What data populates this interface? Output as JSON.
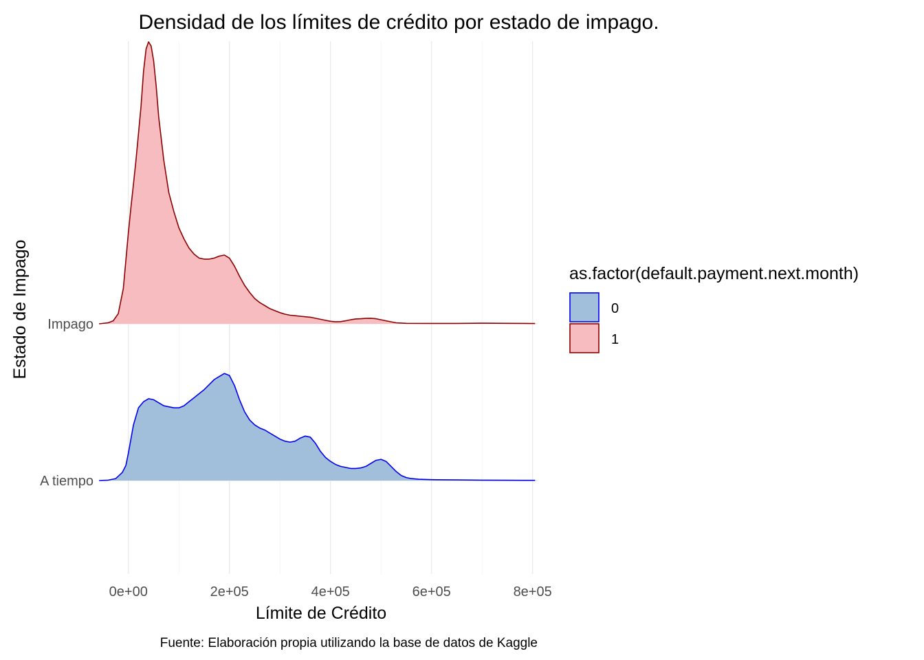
{
  "chart_data": {
    "type": "area",
    "title": "Densidad de los límites de crédito por estado de impago.",
    "xlabel": "Límite de Crédito",
    "ylabel": "Estado de Impago",
    "caption": "Fuente: Elaboración propia utilizando la base de datos de Kaggle",
    "xlim": [
      -50000,
      810000
    ],
    "x_ticks": [
      {
        "value": 0,
        "label": "0e+00"
      },
      {
        "value": 200000,
        "label": "2e+05"
      },
      {
        "value": 400000,
        "label": "4e+05"
      },
      {
        "value": 600000,
        "label": "6e+05"
      },
      {
        "value": 800000,
        "label": "8e+05"
      }
    ],
    "categories": [
      "A tiempo",
      "Impago"
    ],
    "grid": true,
    "legend": {
      "title": "as.factor(default.payment.next.month)",
      "position": "right",
      "entries": [
        {
          "label": "0",
          "fill": "#a1bfda",
          "stroke": "#0000ee"
        },
        {
          "label": "1",
          "fill": "#f7bcbf",
          "stroke": "#8b0000"
        }
      ]
    },
    "series": [
      {
        "level": "A tiempo",
        "legend_key": "0",
        "fill": "#a1bfda",
        "stroke": "#0000ee",
        "points": [
          [
            -58000,
            0.0
          ],
          [
            -40000,
            0.004
          ],
          [
            -25000,
            0.02
          ],
          [
            -12000,
            0.08
          ],
          [
            -5000,
            0.15
          ],
          [
            0,
            0.27
          ],
          [
            10000,
            0.55
          ],
          [
            20000,
            0.72
          ],
          [
            30000,
            0.78
          ],
          [
            40000,
            0.81
          ],
          [
            50000,
            0.8
          ],
          [
            60000,
            0.77
          ],
          [
            70000,
            0.74
          ],
          [
            80000,
            0.73
          ],
          [
            90000,
            0.72
          ],
          [
            100000,
            0.72
          ],
          [
            110000,
            0.74
          ],
          [
            120000,
            0.78
          ],
          [
            130000,
            0.82
          ],
          [
            140000,
            0.86
          ],
          [
            150000,
            0.9
          ],
          [
            160000,
            0.95
          ],
          [
            170000,
            1.0
          ],
          [
            180000,
            1.03
          ],
          [
            190000,
            1.06
          ],
          [
            200000,
            1.04
          ],
          [
            210000,
            0.94
          ],
          [
            220000,
            0.8
          ],
          [
            230000,
            0.68
          ],
          [
            240000,
            0.6
          ],
          [
            250000,
            0.55
          ],
          [
            260000,
            0.52
          ],
          [
            270000,
            0.5
          ],
          [
            280000,
            0.47
          ],
          [
            290000,
            0.44
          ],
          [
            300000,
            0.41
          ],
          [
            310000,
            0.39
          ],
          [
            320000,
            0.38
          ],
          [
            330000,
            0.39
          ],
          [
            340000,
            0.42
          ],
          [
            350000,
            0.44
          ],
          [
            360000,
            0.43
          ],
          [
            370000,
            0.37
          ],
          [
            380000,
            0.29
          ],
          [
            390000,
            0.23
          ],
          [
            400000,
            0.19
          ],
          [
            410000,
            0.16
          ],
          [
            420000,
            0.14
          ],
          [
            430000,
            0.13
          ],
          [
            440000,
            0.12
          ],
          [
            450000,
            0.12
          ],
          [
            460000,
            0.125
          ],
          [
            470000,
            0.14
          ],
          [
            480000,
            0.17
          ],
          [
            490000,
            0.2
          ],
          [
            500000,
            0.21
          ],
          [
            510000,
            0.19
          ],
          [
            520000,
            0.14
          ],
          [
            530000,
            0.09
          ],
          [
            540000,
            0.05
          ],
          [
            550000,
            0.03
          ],
          [
            560000,
            0.02
          ],
          [
            575000,
            0.013
          ],
          [
            600000,
            0.009
          ],
          [
            650000,
            0.006
          ],
          [
            700000,
            0.004
          ],
          [
            750000,
            0.003
          ],
          [
            805000,
            0.002
          ]
        ]
      },
      {
        "level": "Impago",
        "legend_key": "1",
        "fill": "#f7bcbf",
        "stroke": "#8b0000",
        "points": [
          [
            -58000,
            0.0
          ],
          [
            -40000,
            0.01
          ],
          [
            -30000,
            0.03
          ],
          [
            -20000,
            0.1
          ],
          [
            -10000,
            0.35
          ],
          [
            0,
            0.9
          ],
          [
            5000,
            1.15
          ],
          [
            10000,
            1.38
          ],
          [
            15000,
            1.62
          ],
          [
            20000,
            1.88
          ],
          [
            25000,
            2.15
          ],
          [
            30000,
            2.5
          ],
          [
            35000,
            2.72
          ],
          [
            40000,
            2.79
          ],
          [
            45000,
            2.75
          ],
          [
            50000,
            2.6
          ],
          [
            55000,
            2.35
          ],
          [
            60000,
            2.05
          ],
          [
            70000,
            1.62
          ],
          [
            80000,
            1.3
          ],
          [
            90000,
            1.11
          ],
          [
            100000,
            0.95
          ],
          [
            110000,
            0.84
          ],
          [
            120000,
            0.75
          ],
          [
            130000,
            0.69
          ],
          [
            140000,
            0.65
          ],
          [
            150000,
            0.64
          ],
          [
            160000,
            0.64
          ],
          [
            170000,
            0.65
          ],
          [
            180000,
            0.67
          ],
          [
            190000,
            0.68
          ],
          [
            200000,
            0.65
          ],
          [
            210000,
            0.57
          ],
          [
            220000,
            0.47
          ],
          [
            230000,
            0.38
          ],
          [
            240000,
            0.31
          ],
          [
            250000,
            0.25
          ],
          [
            260000,
            0.21
          ],
          [
            270000,
            0.18
          ],
          [
            280000,
            0.15
          ],
          [
            290000,
            0.13
          ],
          [
            300000,
            0.11
          ],
          [
            310000,
            0.095
          ],
          [
            320000,
            0.085
          ],
          [
            330000,
            0.08
          ],
          [
            340000,
            0.075
          ],
          [
            350000,
            0.07
          ],
          [
            360000,
            0.065
          ],
          [
            370000,
            0.055
          ],
          [
            380000,
            0.045
          ],
          [
            390000,
            0.035
          ],
          [
            400000,
            0.025
          ],
          [
            410000,
            0.02
          ],
          [
            420000,
            0.022
          ],
          [
            430000,
            0.03
          ],
          [
            440000,
            0.04
          ],
          [
            450000,
            0.048
          ],
          [
            460000,
            0.05
          ],
          [
            470000,
            0.054
          ],
          [
            480000,
            0.055
          ],
          [
            490000,
            0.05
          ],
          [
            500000,
            0.04
          ],
          [
            510000,
            0.03
          ],
          [
            520000,
            0.02
          ],
          [
            530000,
            0.01
          ],
          [
            550000,
            0.005
          ],
          [
            600000,
            0.004
          ],
          [
            650000,
            0.004
          ],
          [
            700000,
            0.006
          ],
          [
            750000,
            0.005
          ],
          [
            805000,
            0.003
          ]
        ]
      }
    ]
  }
}
